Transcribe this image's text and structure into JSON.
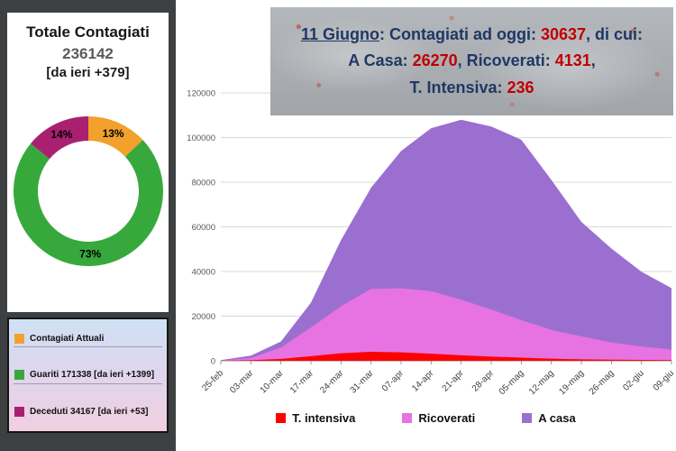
{
  "left_panel": {
    "title": "Totale Contagiati",
    "total": "236142",
    "delta": "[da ieri +379]",
    "donut": {
      "segments": [
        {
          "name": "Contagiati Attuali",
          "pct": 13,
          "label": "13%",
          "color": "#f2a12c"
        },
        {
          "name": "Guariti",
          "pct": 73,
          "label": "73%",
          "color": "#37a93c"
        },
        {
          "name": "Deceduti",
          "pct": 14,
          "label": "14%",
          "color": "#a92071"
        }
      ]
    },
    "legend": [
      {
        "text": "Contagiati Attuali",
        "color": "#f2a12c"
      },
      {
        "text": "Guariti 171338 [da ieri +1399]",
        "color": "#37a93c"
      },
      {
        "text": "Deceduti 34167 [da ieri +53]",
        "color": "#a92071"
      }
    ]
  },
  "header": {
    "date": "11 Giugno",
    "after_date": ": Contagiati ad oggi: ",
    "total_cases": "30637",
    "line1_end": ", di cui:",
    "home_label": "A Casa: ",
    "home_value": "26270",
    "hosp_label": ", Ricoverati: ",
    "hosp_value": "4131",
    "line2_end": ",",
    "icu_label": "T. Intensiva: ",
    "icu_value": "236",
    "text_color": "#1f3864",
    "number_color": "#c00000"
  },
  "chart_data": {
    "type": "area",
    "stacked": true,
    "title": "",
    "xlabel": "",
    "ylabel": "",
    "ylim": [
      0,
      120000
    ],
    "yticks": [
      0,
      20000,
      40000,
      60000,
      80000,
      100000,
      120000
    ],
    "grid": true,
    "legend_position": "bottom",
    "categories": [
      "25-feb",
      "03-mar",
      "10-mar",
      "17-mar",
      "24-mar",
      "31-mar",
      "07-apr",
      "14-apr",
      "21-apr",
      "28-apr",
      "05-mag",
      "12-mag",
      "19-mag",
      "26-mag",
      "02-giu",
      "09-giu"
    ],
    "series": [
      {
        "name": "T. intensiva",
        "color": "#fe0000",
        "values": [
          30,
          230,
          880,
          2060,
          3400,
          4020,
          3790,
          3190,
          2470,
          1860,
          1430,
          950,
          640,
          490,
          410,
          280
        ]
      },
      {
        "name": "Ricoverati",
        "color": "#e673e1",
        "values": [
          120,
          1000,
          5040,
          12900,
          21000,
          28200,
          28700,
          28000,
          24900,
          21100,
          16800,
          12900,
          10300,
          7700,
          6000,
          4700
        ]
      },
      {
        "name": "A casa",
        "color": "#9b6fd0",
        "values": [
          170,
          1100,
          2700,
          11100,
          29700,
          45300,
          61500,
          73000,
          80600,
          82000,
          80800,
          67200,
          51300,
          42100,
          33500,
          27600
        ]
      }
    ]
  }
}
